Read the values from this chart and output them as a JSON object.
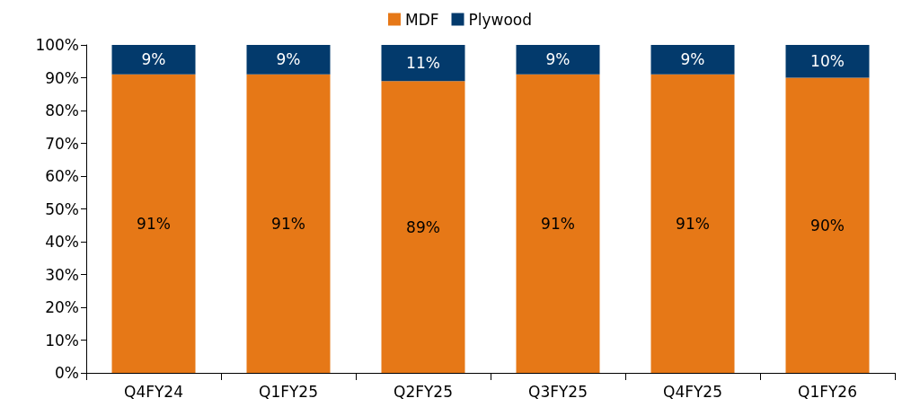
{
  "chart_data": {
    "type": "bar",
    "stacked": true,
    "categories": [
      "Q4FY24",
      "Q1FY25",
      "Q2FY25",
      "Q3FY25",
      "Q4FY25",
      "Q1FY26"
    ],
    "series": [
      {
        "name": "MDF",
        "color": "#e67817",
        "values": [
          91,
          91,
          89,
          91,
          91,
          90
        ],
        "value_labels": [
          "91%",
          "91%",
          "89%",
          "91%",
          "91%",
          "90%"
        ]
      },
      {
        "name": "Plywood",
        "color": "#033a6c",
        "values": [
          9,
          9,
          11,
          9,
          9,
          10
        ],
        "value_labels": [
          "9%",
          "9%",
          "11%",
          "9%",
          "9%",
          "10%"
        ]
      }
    ],
    "ylim": [
      0,
      100
    ],
    "yticks": [
      {
        "value": 0,
        "label": "0%"
      },
      {
        "value": 10,
        "label": "10%"
      },
      {
        "value": 20,
        "label": "20%"
      },
      {
        "value": 30,
        "label": "30%"
      },
      {
        "value": 40,
        "label": "40%"
      },
      {
        "value": 50,
        "label": "50%"
      },
      {
        "value": 60,
        "label": "60%"
      },
      {
        "value": 70,
        "label": "70%"
      },
      {
        "value": 80,
        "label": "80%"
      },
      {
        "value": 90,
        "label": "90%"
      },
      {
        "value": 100,
        "label": "100%"
      }
    ],
    "grid": false,
    "legend": "top"
  }
}
